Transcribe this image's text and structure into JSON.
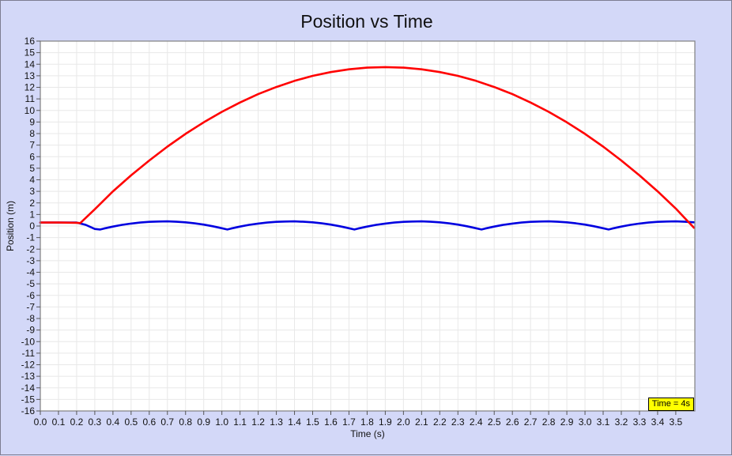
{
  "window": {
    "background": "#d3d8f8",
    "border_color": "#7d7d91"
  },
  "chart_data": {
    "type": "line",
    "title": "Position vs Time",
    "xlabel": "Time (s)",
    "ylabel": "Position (m)",
    "xlim": [
      0,
      3.605
    ],
    "ylim": [
      -16,
      16
    ],
    "grid": true,
    "plot_bg": "#ffffff",
    "grid_color": "#e8e8e8",
    "axis_border_color": "#808080",
    "tick_color": "#555555",
    "x_ticks": [
      "0.0",
      "0.1",
      "0.2",
      "0.3",
      "0.4",
      "0.5",
      "0.6",
      "0.7",
      "0.8",
      "0.9",
      "1.0",
      "1.1",
      "1.2",
      "1.3",
      "1.4",
      "1.5",
      "1.6",
      "1.7",
      "1.8",
      "1.9",
      "2.0",
      "2.1",
      "2.2",
      "2.3",
      "2.4",
      "2.5",
      "2.6",
      "2.7",
      "2.8",
      "2.9",
      "3.0",
      "3.1",
      "3.2",
      "3.3",
      "3.4",
      "3.5"
    ],
    "y_ticks": [
      "16",
      "15",
      "14",
      "13",
      "12",
      "11",
      "10",
      "9",
      "8",
      "7",
      "6",
      "5",
      "4",
      "3",
      "2",
      "1",
      "0",
      "-1",
      "-2",
      "-3",
      "-4",
      "-5",
      "-6",
      "-7",
      "-8",
      "-9",
      "-10",
      "-11",
      "-12",
      "-13",
      "-14",
      "-15",
      "-16"
    ],
    "legend": "none",
    "series": [
      {
        "name": "blue-series",
        "color": "#0000e0",
        "width": 2.6,
        "points": [
          [
            0,
            0.3
          ],
          [
            0.05,
            0.3
          ],
          [
            0.1,
            0.3
          ],
          [
            0.15,
            0.3
          ],
          [
            0.2,
            0.3
          ],
          [
            0.25,
            0.1
          ],
          [
            0.3,
            -0.25
          ],
          [
            0.33,
            -0.3
          ],
          [
            0.35,
            -0.22
          ],
          [
            0.4,
            -0.05
          ],
          [
            0.45,
            0.1
          ],
          [
            0.5,
            0.21
          ],
          [
            0.55,
            0.3
          ],
          [
            0.6,
            0.36
          ],
          [
            0.65,
            0.39
          ],
          [
            0.7,
            0.4
          ],
          [
            0.75,
            0.37
          ],
          [
            0.8,
            0.32
          ],
          [
            0.85,
            0.23
          ],
          [
            0.9,
            0.12
          ],
          [
            0.95,
            -0.02
          ],
          [
            1.0,
            -0.19
          ],
          [
            1.03,
            -0.3
          ],
          [
            1.05,
            -0.22
          ],
          [
            1.1,
            -0.05
          ],
          [
            1.15,
            0.1
          ],
          [
            1.2,
            0.21
          ],
          [
            1.25,
            0.3
          ],
          [
            1.3,
            0.36
          ],
          [
            1.35,
            0.39
          ],
          [
            1.4,
            0.4
          ],
          [
            1.45,
            0.37
          ],
          [
            1.5,
            0.32
          ],
          [
            1.55,
            0.23
          ],
          [
            1.6,
            0.12
          ],
          [
            1.65,
            -0.02
          ],
          [
            1.7,
            -0.19
          ],
          [
            1.73,
            -0.3
          ],
          [
            1.75,
            -0.22
          ],
          [
            1.8,
            -0.05
          ],
          [
            1.85,
            0.1
          ],
          [
            1.9,
            0.21
          ],
          [
            1.95,
            0.3
          ],
          [
            2.0,
            0.36
          ],
          [
            2.05,
            0.39
          ],
          [
            2.1,
            0.4
          ],
          [
            2.15,
            0.37
          ],
          [
            2.2,
            0.32
          ],
          [
            2.25,
            0.23
          ],
          [
            2.3,
            0.12
          ],
          [
            2.35,
            -0.02
          ],
          [
            2.4,
            -0.19
          ],
          [
            2.43,
            -0.3
          ],
          [
            2.45,
            -0.22
          ],
          [
            2.5,
            -0.05
          ],
          [
            2.55,
            0.1
          ],
          [
            2.6,
            0.21
          ],
          [
            2.65,
            0.3
          ],
          [
            2.7,
            0.36
          ],
          [
            2.75,
            0.39
          ],
          [
            2.8,
            0.4
          ],
          [
            2.85,
            0.37
          ],
          [
            2.9,
            0.32
          ],
          [
            2.95,
            0.23
          ],
          [
            3.0,
            0.12
          ],
          [
            3.05,
            -0.02
          ],
          [
            3.1,
            -0.19
          ],
          [
            3.13,
            -0.3
          ],
          [
            3.15,
            -0.22
          ],
          [
            3.2,
            -0.05
          ],
          [
            3.25,
            0.1
          ],
          [
            3.3,
            0.21
          ],
          [
            3.35,
            0.3
          ],
          [
            3.4,
            0.36
          ],
          [
            3.45,
            0.39
          ],
          [
            3.5,
            0.4
          ],
          [
            3.55,
            0.37
          ],
          [
            3.6,
            0.32
          ]
        ]
      },
      {
        "name": "red-series",
        "color": "#ff0000",
        "width": 2.6,
        "points": [
          [
            0,
            0.3
          ],
          [
            0.1,
            0.3
          ],
          [
            0.2,
            0.28
          ],
          [
            0.22,
            0.25
          ],
          [
            0.3,
            1.45
          ],
          [
            0.4,
            3.0
          ],
          [
            0.5,
            4.38
          ],
          [
            0.6,
            5.67
          ],
          [
            0.7,
            6.87
          ],
          [
            0.8,
            7.97
          ],
          [
            0.9,
            8.97
          ],
          [
            1.0,
            9.88
          ],
          [
            1.1,
            10.69
          ],
          [
            1.2,
            11.41
          ],
          [
            1.3,
            12.03
          ],
          [
            1.4,
            12.56
          ],
          [
            1.5,
            12.99
          ],
          [
            1.6,
            13.32
          ],
          [
            1.7,
            13.56
          ],
          [
            1.8,
            13.7
          ],
          [
            1.9,
            13.75
          ],
          [
            2.0,
            13.7
          ],
          [
            2.1,
            13.56
          ],
          [
            2.2,
            13.32
          ],
          [
            2.3,
            12.99
          ],
          [
            2.4,
            12.56
          ],
          [
            2.5,
            12.03
          ],
          [
            2.6,
            11.41
          ],
          [
            2.7,
            10.69
          ],
          [
            2.8,
            9.88
          ],
          [
            2.9,
            8.97
          ],
          [
            3.0,
            7.97
          ],
          [
            3.1,
            6.87
          ],
          [
            3.2,
            5.67
          ],
          [
            3.3,
            4.38
          ],
          [
            3.4,
            3.0
          ],
          [
            3.5,
            1.51
          ],
          [
            3.55,
            0.68
          ],
          [
            3.6,
            -0.15
          ]
        ]
      }
    ],
    "annotation": {
      "text": "Time = 4s",
      "bg": "#ffff00",
      "text_color": "#000000",
      "position": "bottom-right"
    }
  }
}
